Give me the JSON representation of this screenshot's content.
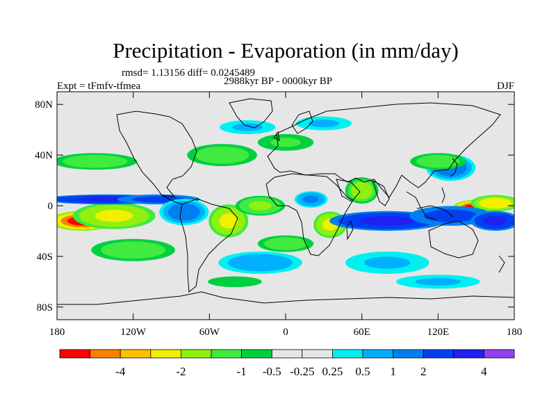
{
  "chart_data": {
    "type": "heatmap",
    "title": "Precipitation - Evaporation (in mm/day)",
    "stats_line": "rmsd= 1.13156 diff= 0.0245489",
    "period": "2988kyr BP - 0000kyr BP",
    "experiment": "Expt = tFmfv-tfmea",
    "season": "DJF",
    "x_range": [
      -180,
      180
    ],
    "y_range": [
      -90,
      90
    ],
    "x_ticks": [
      {
        "value": -180,
        "label": "180"
      },
      {
        "value": -120,
        "label": "120W"
      },
      {
        "value": -60,
        "label": "60W"
      },
      {
        "value": 0,
        "label": "0"
      },
      {
        "value": 60,
        "label": "60E"
      },
      {
        "value": 120,
        "label": "120E"
      },
      {
        "value": 180,
        "label": "180"
      }
    ],
    "y_ticks": [
      {
        "value": 80,
        "label": "80N"
      },
      {
        "value": 40,
        "label": "40N"
      },
      {
        "value": 0,
        "label": "0"
      },
      {
        "value": -40,
        "label": "40S"
      },
      {
        "value": -80,
        "label": "80S"
      }
    ],
    "colorbar": {
      "colors": [
        "#ff0000",
        "#ff8000",
        "#ffc000",
        "#f0f000",
        "#90f010",
        "#40ea40",
        "#00d040",
        "#e6e6e6",
        "#e6e6e6",
        "#00f0f0",
        "#00b0ff",
        "#0080f0",
        "#0040f0",
        "#2020f0",
        "#9040f0"
      ],
      "boundary_labels": [
        "",
        "-4",
        "",
        "-2",
        "",
        "-1",
        "-0.5",
        "-0.25",
        "0.25",
        "0.5",
        "1",
        "2",
        "",
        "4",
        ""
      ]
    },
    "anomaly_centers": [
      {
        "lon": -160,
        "lat": -12,
        "value": -5.5,
        "slon": 20,
        "slat": 6
      },
      {
        "lon": -135,
        "lat": -8,
        "value": -2.5,
        "slon": 25,
        "slat": 8
      },
      {
        "lon": 147,
        "lat": -2,
        "value": -5.5,
        "slon": 12,
        "slat": 5
      },
      {
        "lon": 165,
        "lat": 2,
        "value": -3.0,
        "slon": 15,
        "slat": 5
      },
      {
        "lon": -45,
        "lat": -12,
        "value": -2.5,
        "slon": 12,
        "slat": 10
      },
      {
        "lon": 35,
        "lat": -15,
        "value": -2.0,
        "slon": 10,
        "slat": 8
      },
      {
        "lon": 60,
        "lat": 12,
        "value": -1.5,
        "slon": 10,
        "slat": 8
      },
      {
        "lon": -20,
        "lat": 0,
        "value": -1.2,
        "slon": 15,
        "slat": 6
      },
      {
        "lon": -140,
        "lat": 5,
        "value": 4.5,
        "slon": 40,
        "slat": 3
      },
      {
        "lon": -100,
        "lat": 5,
        "value": 3.5,
        "slon": 25,
        "slat": 3
      },
      {
        "lon": 80,
        "lat": -12,
        "value": 4.5,
        "slon": 35,
        "slat": 6
      },
      {
        "lon": 130,
        "lat": -8,
        "value": 3.5,
        "slon": 25,
        "slat": 6
      },
      {
        "lon": 165,
        "lat": -12,
        "value": 4.0,
        "slon": 15,
        "slat": 6
      },
      {
        "lon": -80,
        "lat": -5,
        "value": 1.5,
        "slon": 15,
        "slat": 8
      },
      {
        "lon": 20,
        "lat": 5,
        "value": 1.2,
        "slon": 10,
        "slat": 5
      },
      {
        "lon": 130,
        "lat": 30,
        "value": 1.5,
        "slon": 15,
        "slat": 8
      },
      {
        "lon": -50,
        "lat": 40,
        "value": -0.8,
        "slon": 25,
        "slat": 8
      },
      {
        "lon": 120,
        "lat": 35,
        "value": -0.8,
        "slon": 20,
        "slat": 6
      },
      {
        "lon": -150,
        "lat": 35,
        "value": -0.7,
        "slon": 30,
        "slat": 6
      },
      {
        "lon": 0,
        "lat": 50,
        "value": -0.6,
        "slon": 20,
        "slat": 6
      },
      {
        "lon": -30,
        "lat": 62,
        "value": 0.6,
        "slon": 20,
        "slat": 5
      },
      {
        "lon": 30,
        "lat": 65,
        "value": 0.5,
        "slon": 20,
        "slat": 5
      },
      {
        "lon": -20,
        "lat": -45,
        "value": 0.7,
        "slon": 30,
        "slat": 8
      },
      {
        "lon": 80,
        "lat": -45,
        "value": 0.6,
        "slon": 30,
        "slat": 8
      },
      {
        "lon": -120,
        "lat": -35,
        "value": -0.7,
        "slon": 30,
        "slat": 8
      },
      {
        "lon": 0,
        "lat": -30,
        "value": -0.7,
        "slon": 20,
        "slat": 6
      },
      {
        "lon": 120,
        "lat": -60,
        "value": 0.5,
        "slon": 30,
        "slat": 5
      },
      {
        "lon": -40,
        "lat": -60,
        "value": -0.4,
        "slon": 25,
        "slat": 5
      }
    ]
  }
}
